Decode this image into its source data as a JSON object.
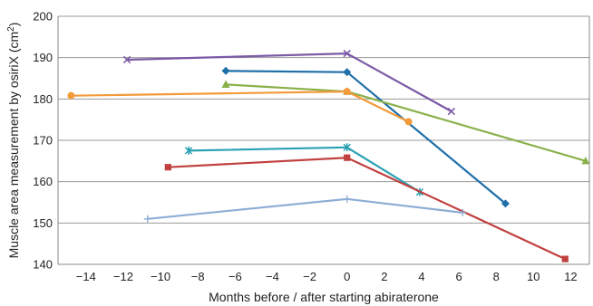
{
  "chart_data": {
    "type": "line",
    "xlabel": "Months before / after starting abiraterone",
    "ylabel_main": "Muscle area measurement by osiriX (cm",
    "ylabel_sup": "2",
    "ylabel_tail": ")",
    "xlim": [
      -15.5,
      13
    ],
    "ylim": [
      140,
      200
    ],
    "xticks": [
      -14,
      -12,
      -10,
      -8,
      -6,
      -4,
      -2,
      0,
      2,
      4,
      6,
      8,
      10,
      12
    ],
    "yticks": [
      140,
      150,
      160,
      170,
      180,
      190,
      200
    ],
    "grid": "horizontal",
    "series": [
      {
        "color": "#7b5aa6",
        "marker": "x",
        "x": [
          -11.8,
          0,
          5.6
        ],
        "y": [
          189.5,
          191,
          177
        ]
      },
      {
        "color": "#1f6fa8",
        "marker": "diamond",
        "x": [
          -6.5,
          0,
          8.5
        ],
        "y": [
          186.8,
          186.5,
          154.7
        ]
      },
      {
        "color": "#8ab04a",
        "marker": "triangle",
        "x": [
          -6.5,
          0,
          12.8
        ],
        "y": [
          183.5,
          181.8,
          165
        ]
      },
      {
        "color": "#f39a3a",
        "marker": "circle",
        "x": [
          -14.8,
          0,
          3.3
        ],
        "y": [
          180.8,
          181.8,
          174.5
        ]
      },
      {
        "color": "#2aa1b3",
        "marker": "star",
        "x": [
          -8.5,
          0,
          3.9
        ],
        "y": [
          167.5,
          168.3,
          157.5
        ]
      },
      {
        "color": "#c0413f",
        "marker": "square",
        "x": [
          -9.6,
          0,
          11.7
        ],
        "y": [
          163.5,
          165.8,
          141.3
        ]
      },
      {
        "color": "#8eaed5",
        "marker": "plus",
        "x": [
          -10.7,
          0,
          6.2
        ],
        "y": [
          151,
          155.8,
          152.5
        ]
      }
    ]
  }
}
